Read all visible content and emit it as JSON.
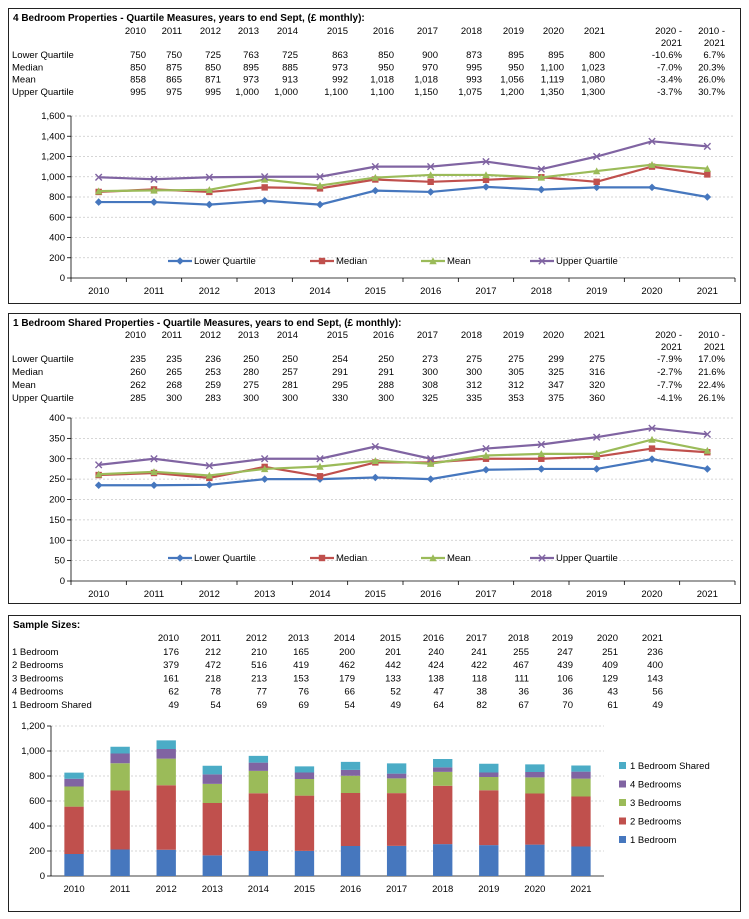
{
  "chart_data": [
    {
      "type": "line",
      "title": "4 Bedroom Properties - Quartile Measures, years to end Sept, (£ monthly):",
      "table": {
        "headers": [
          "2010",
          "2011",
          "2012",
          "2013",
          "2014",
          "2015",
          "2016",
          "2017",
          "2018",
          "2019",
          "2020",
          "2021",
          "2020 -",
          "2010 -"
        ],
        "headers2": [
          "",
          "",
          "",
          "",
          "",
          "",
          "",
          "",
          "",
          "",
          "",
          "",
          "2021",
          "2021"
        ],
        "rows": [
          {
            "label": "Lower Quartile",
            "cells": [
              "750",
              "750",
              "725",
              "763",
              "725",
              "863",
              "850",
              "900",
              "873",
              "895",
              "895",
              "800",
              "-10.6%",
              "6.7%"
            ]
          },
          {
            "label": "Median",
            "cells": [
              "850",
              "875",
              "850",
              "895",
              "885",
              "973",
              "950",
              "970",
              "995",
              "950",
              "1,100",
              "1,023",
              "-7.0%",
              "20.3%"
            ]
          },
          {
            "label": "Mean",
            "cells": [
              "858",
              "865",
              "871",
              "973",
              "913",
              "992",
              "1,018",
              "1,018",
              "993",
              "1,056",
              "1,119",
              "1,080",
              "-3.4%",
              "26.0%"
            ]
          },
          {
            "label": "Upper Quartile",
            "cells": [
              "995",
              "975",
              "995",
              "1,000",
              "1,000",
              "1,100",
              "1,100",
              "1,150",
              "1,075",
              "1,200",
              "1,350",
              "1,300",
              "-3.7%",
              "30.7%"
            ]
          }
        ]
      },
      "x": [
        "2010",
        "2011",
        "2012",
        "2013",
        "2014",
        "2015",
        "2016",
        "2017",
        "2018",
        "2019",
        "2020",
        "2021"
      ],
      "yticks": [
        "0",
        "200",
        "400",
        "600",
        "800",
        "1,000",
        "1,200",
        "1,400",
        "1,600"
      ],
      "ylim": [
        0,
        1600
      ],
      "series": [
        {
          "name": "Lower Quartile",
          "color": "#4677BE",
          "marker": "diamond",
          "values": [
            750,
            750,
            725,
            763,
            725,
            863,
            850,
            900,
            873,
            895,
            895,
            800
          ]
        },
        {
          "name": "Median",
          "color": "#C0504D",
          "marker": "square",
          "values": [
            850,
            875,
            850,
            895,
            885,
            973,
            950,
            970,
            995,
            950,
            1100,
            1023
          ]
        },
        {
          "name": "Mean",
          "color": "#9BBB59",
          "marker": "triangle",
          "values": [
            858,
            865,
            871,
            973,
            913,
            992,
            1018,
            1018,
            993,
            1056,
            1119,
            1080
          ]
        },
        {
          "name": "Upper Quartile",
          "color": "#8064A2",
          "marker": "x",
          "values": [
            995,
            975,
            995,
            1000,
            1000,
            1100,
            1100,
            1150,
            1075,
            1200,
            1350,
            1300
          ]
        }
      ],
      "legend": "inside-bottom"
    },
    {
      "type": "line",
      "title": "1 Bedroom Shared Properties - Quartile Measures, years to end Sept, (£ monthly):",
      "table": {
        "headers": [
          "2010",
          "2011",
          "2012",
          "2013",
          "2014",
          "2015",
          "2016",
          "2017",
          "2018",
          "2019",
          "2020",
          "2021",
          "2020 -",
          "2010 -"
        ],
        "headers2": [
          "",
          "",
          "",
          "",
          "",
          "",
          "",
          "",
          "",
          "",
          "",
          "",
          "2021",
          "2021"
        ],
        "rows": [
          {
            "label": "Lower Quartile",
            "cells": [
              "235",
              "235",
              "236",
              "250",
              "250",
              "254",
              "250",
              "273",
              "275",
              "275",
              "299",
              "275",
              "-7.9%",
              "17.0%"
            ]
          },
          {
            "label": "Median",
            "cells": [
              "260",
              "265",
              "253",
              "280",
              "257",
              "291",
              "291",
              "300",
              "300",
              "305",
              "325",
              "316",
              "-2.7%",
              "21.6%"
            ]
          },
          {
            "label": "Mean",
            "cells": [
              "262",
              "268",
              "259",
              "275",
              "281",
              "295",
              "288",
              "308",
              "312",
              "312",
              "347",
              "320",
              "-7.7%",
              "22.4%"
            ]
          },
          {
            "label": "Upper Quartile",
            "cells": [
              "285",
              "300",
              "283",
              "300",
              "300",
              "330",
              "300",
              "325",
              "335",
              "353",
              "375",
              "360",
              "-4.1%",
              "26.1%"
            ]
          }
        ]
      },
      "x": [
        "2010",
        "2011",
        "2012",
        "2013",
        "2014",
        "2015",
        "2016",
        "2017",
        "2018",
        "2019",
        "2020",
        "2021"
      ],
      "yticks": [
        "0",
        "50",
        "100",
        "150",
        "200",
        "250",
        "300",
        "350",
        "400"
      ],
      "ylim": [
        0,
        400
      ],
      "series": [
        {
          "name": "Lower Quartile",
          "color": "#4677BE",
          "marker": "diamond",
          "values": [
            235,
            235,
            236,
            250,
            250,
            254,
            250,
            273,
            275,
            275,
            299,
            275
          ]
        },
        {
          "name": "Median",
          "color": "#C0504D",
          "marker": "square",
          "values": [
            260,
            265,
            253,
            280,
            257,
            291,
            291,
            300,
            300,
            305,
            325,
            316
          ]
        },
        {
          "name": "Mean",
          "color": "#9BBB59",
          "marker": "triangle",
          "values": [
            262,
            268,
            259,
            275,
            281,
            295,
            288,
            308,
            312,
            312,
            347,
            320
          ]
        },
        {
          "name": "Upper Quartile",
          "color": "#8064A2",
          "marker": "x",
          "values": [
            285,
            300,
            283,
            300,
            300,
            330,
            300,
            325,
            335,
            353,
            375,
            360
          ]
        }
      ],
      "legend": "inside-bottom"
    },
    {
      "type": "bar",
      "stacked": true,
      "title": "Sample Sizes:",
      "table": {
        "headers": [
          "2010",
          "2011",
          "2012",
          "2013",
          "2014",
          "2015",
          "2016",
          "2017",
          "2018",
          "2019",
          "2020",
          "2021"
        ],
        "rows": [
          {
            "label": "1 Bedroom",
            "cells": [
              "176",
              "212",
              "210",
              "165",
              "200",
              "201",
              "240",
              "241",
              "255",
              "247",
              "251",
              "236"
            ]
          },
          {
            "label": "2 Bedrooms",
            "cells": [
              "379",
              "472",
              "516",
              "419",
              "462",
              "442",
              "424",
              "422",
              "467",
              "439",
              "409",
              "400"
            ]
          },
          {
            "label": "3 Bedrooms",
            "cells": [
              "161",
              "218",
              "213",
              "153",
              "179",
              "133",
              "138",
              "118",
              "111",
              "106",
              "129",
              "143"
            ]
          },
          {
            "label": "4 Bedrooms",
            "cells": [
              "62",
              "78",
              "77",
              "76",
              "66",
              "52",
              "47",
              "38",
              "36",
              "36",
              "43",
              "56"
            ]
          },
          {
            "label": "1 Bedroom Shared",
            "cells": [
              "49",
              "54",
              "69",
              "69",
              "54",
              "49",
              "64",
              "82",
              "67",
              "70",
              "61",
              "49"
            ]
          }
        ]
      },
      "categories": [
        "2010",
        "2011",
        "2012",
        "2013",
        "2014",
        "2015",
        "2016",
        "2017",
        "2018",
        "2019",
        "2020",
        "2021"
      ],
      "yticks": [
        "0",
        "200",
        "400",
        "600",
        "800",
        "1,000",
        "1,200"
      ],
      "ylim": [
        0,
        1200
      ],
      "series": [
        {
          "name": "1 Bedroom",
          "color": "#4677BE",
          "values": [
            176,
            212,
            210,
            165,
            200,
            201,
            240,
            241,
            255,
            247,
            251,
            236
          ]
        },
        {
          "name": "2 Bedrooms",
          "color": "#C0504D",
          "values": [
            379,
            472,
            516,
            419,
            462,
            442,
            424,
            422,
            467,
            439,
            409,
            400
          ]
        },
        {
          "name": "3 Bedrooms",
          "color": "#9BBB59",
          "values": [
            161,
            218,
            213,
            153,
            179,
            133,
            138,
            118,
            111,
            106,
            129,
            143
          ]
        },
        {
          "name": "4 Bedrooms",
          "color": "#8064A2",
          "values": [
            62,
            78,
            77,
            76,
            66,
            52,
            47,
            38,
            36,
            36,
            43,
            56
          ]
        },
        {
          "name": "1 Bedroom Shared",
          "color": "#4BACC6",
          "values": [
            49,
            54,
            69,
            69,
            54,
            49,
            64,
            82,
            67,
            70,
            61,
            49
          ]
        }
      ],
      "legend": "right"
    }
  ]
}
